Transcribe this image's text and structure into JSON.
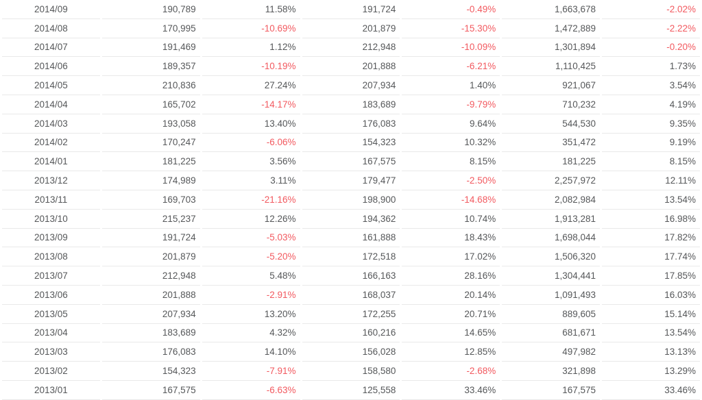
{
  "colors": {
    "text": "#555759",
    "negative": "#f2595f",
    "row_border": "#e9e9e9",
    "background": "#ffffff"
  },
  "chart_data": {
    "type": "table",
    "title": "",
    "columns_visible": false,
    "negative_values_shown_in_red": true,
    "rows": [
      [
        "2014/09",
        "190,789",
        "11.58%",
        "191,724",
        "-0.49%",
        "1,663,678",
        "-2.02%"
      ],
      [
        "2014/08",
        "170,995",
        "-10.69%",
        "201,879",
        "-15.30%",
        "1,472,889",
        "-2.22%"
      ],
      [
        "2014/07",
        "191,469",
        "1.12%",
        "212,948",
        "-10.09%",
        "1,301,894",
        "-0.20%"
      ],
      [
        "2014/06",
        "189,357",
        "-10.19%",
        "201,888",
        "-6.21%",
        "1,110,425",
        "1.73%"
      ],
      [
        "2014/05",
        "210,836",
        "27.24%",
        "207,934",
        "1.40%",
        "921,067",
        "3.54%"
      ],
      [
        "2014/04",
        "165,702",
        "-14.17%",
        "183,689",
        "-9.79%",
        "710,232",
        "4.19%"
      ],
      [
        "2014/03",
        "193,058",
        "13.40%",
        "176,083",
        "9.64%",
        "544,530",
        "9.35%"
      ],
      [
        "2014/02",
        "170,247",
        "-6.06%",
        "154,323",
        "10.32%",
        "351,472",
        "9.19%"
      ],
      [
        "2014/01",
        "181,225",
        "3.56%",
        "167,575",
        "8.15%",
        "181,225",
        "8.15%"
      ],
      [
        "2013/12",
        "174,989",
        "3.11%",
        "179,477",
        "-2.50%",
        "2,257,972",
        "12.11%"
      ],
      [
        "2013/11",
        "169,703",
        "-21.16%",
        "198,900",
        "-14.68%",
        "2,082,984",
        "13.54%"
      ],
      [
        "2013/10",
        "215,237",
        "12.26%",
        "194,362",
        "10.74%",
        "1,913,281",
        "16.98%"
      ],
      [
        "2013/09",
        "191,724",
        "-5.03%",
        "161,888",
        "18.43%",
        "1,698,044",
        "17.82%"
      ],
      [
        "2013/08",
        "201,879",
        "-5.20%",
        "172,518",
        "17.02%",
        "1,506,320",
        "17.74%"
      ],
      [
        "2013/07",
        "212,948",
        "5.48%",
        "166,163",
        "28.16%",
        "1,304,441",
        "17.85%"
      ],
      [
        "2013/06",
        "201,888",
        "-2.91%",
        "168,037",
        "20.14%",
        "1,091,493",
        "16.03%"
      ],
      [
        "2013/05",
        "207,934",
        "13.20%",
        "172,255",
        "20.71%",
        "889,605",
        "15.14%"
      ],
      [
        "2013/04",
        "183,689",
        "4.32%",
        "160,216",
        "14.65%",
        "681,671",
        "13.54%"
      ],
      [
        "2013/03",
        "176,083",
        "14.10%",
        "156,028",
        "12.85%",
        "497,982",
        "13.13%"
      ],
      [
        "2013/02",
        "154,323",
        "-7.91%",
        "158,580",
        "-2.68%",
        "321,898",
        "13.29%"
      ],
      [
        "2013/01",
        "167,575",
        "-6.63%",
        "125,558",
        "33.46%",
        "167,575",
        "33.46%"
      ]
    ]
  }
}
